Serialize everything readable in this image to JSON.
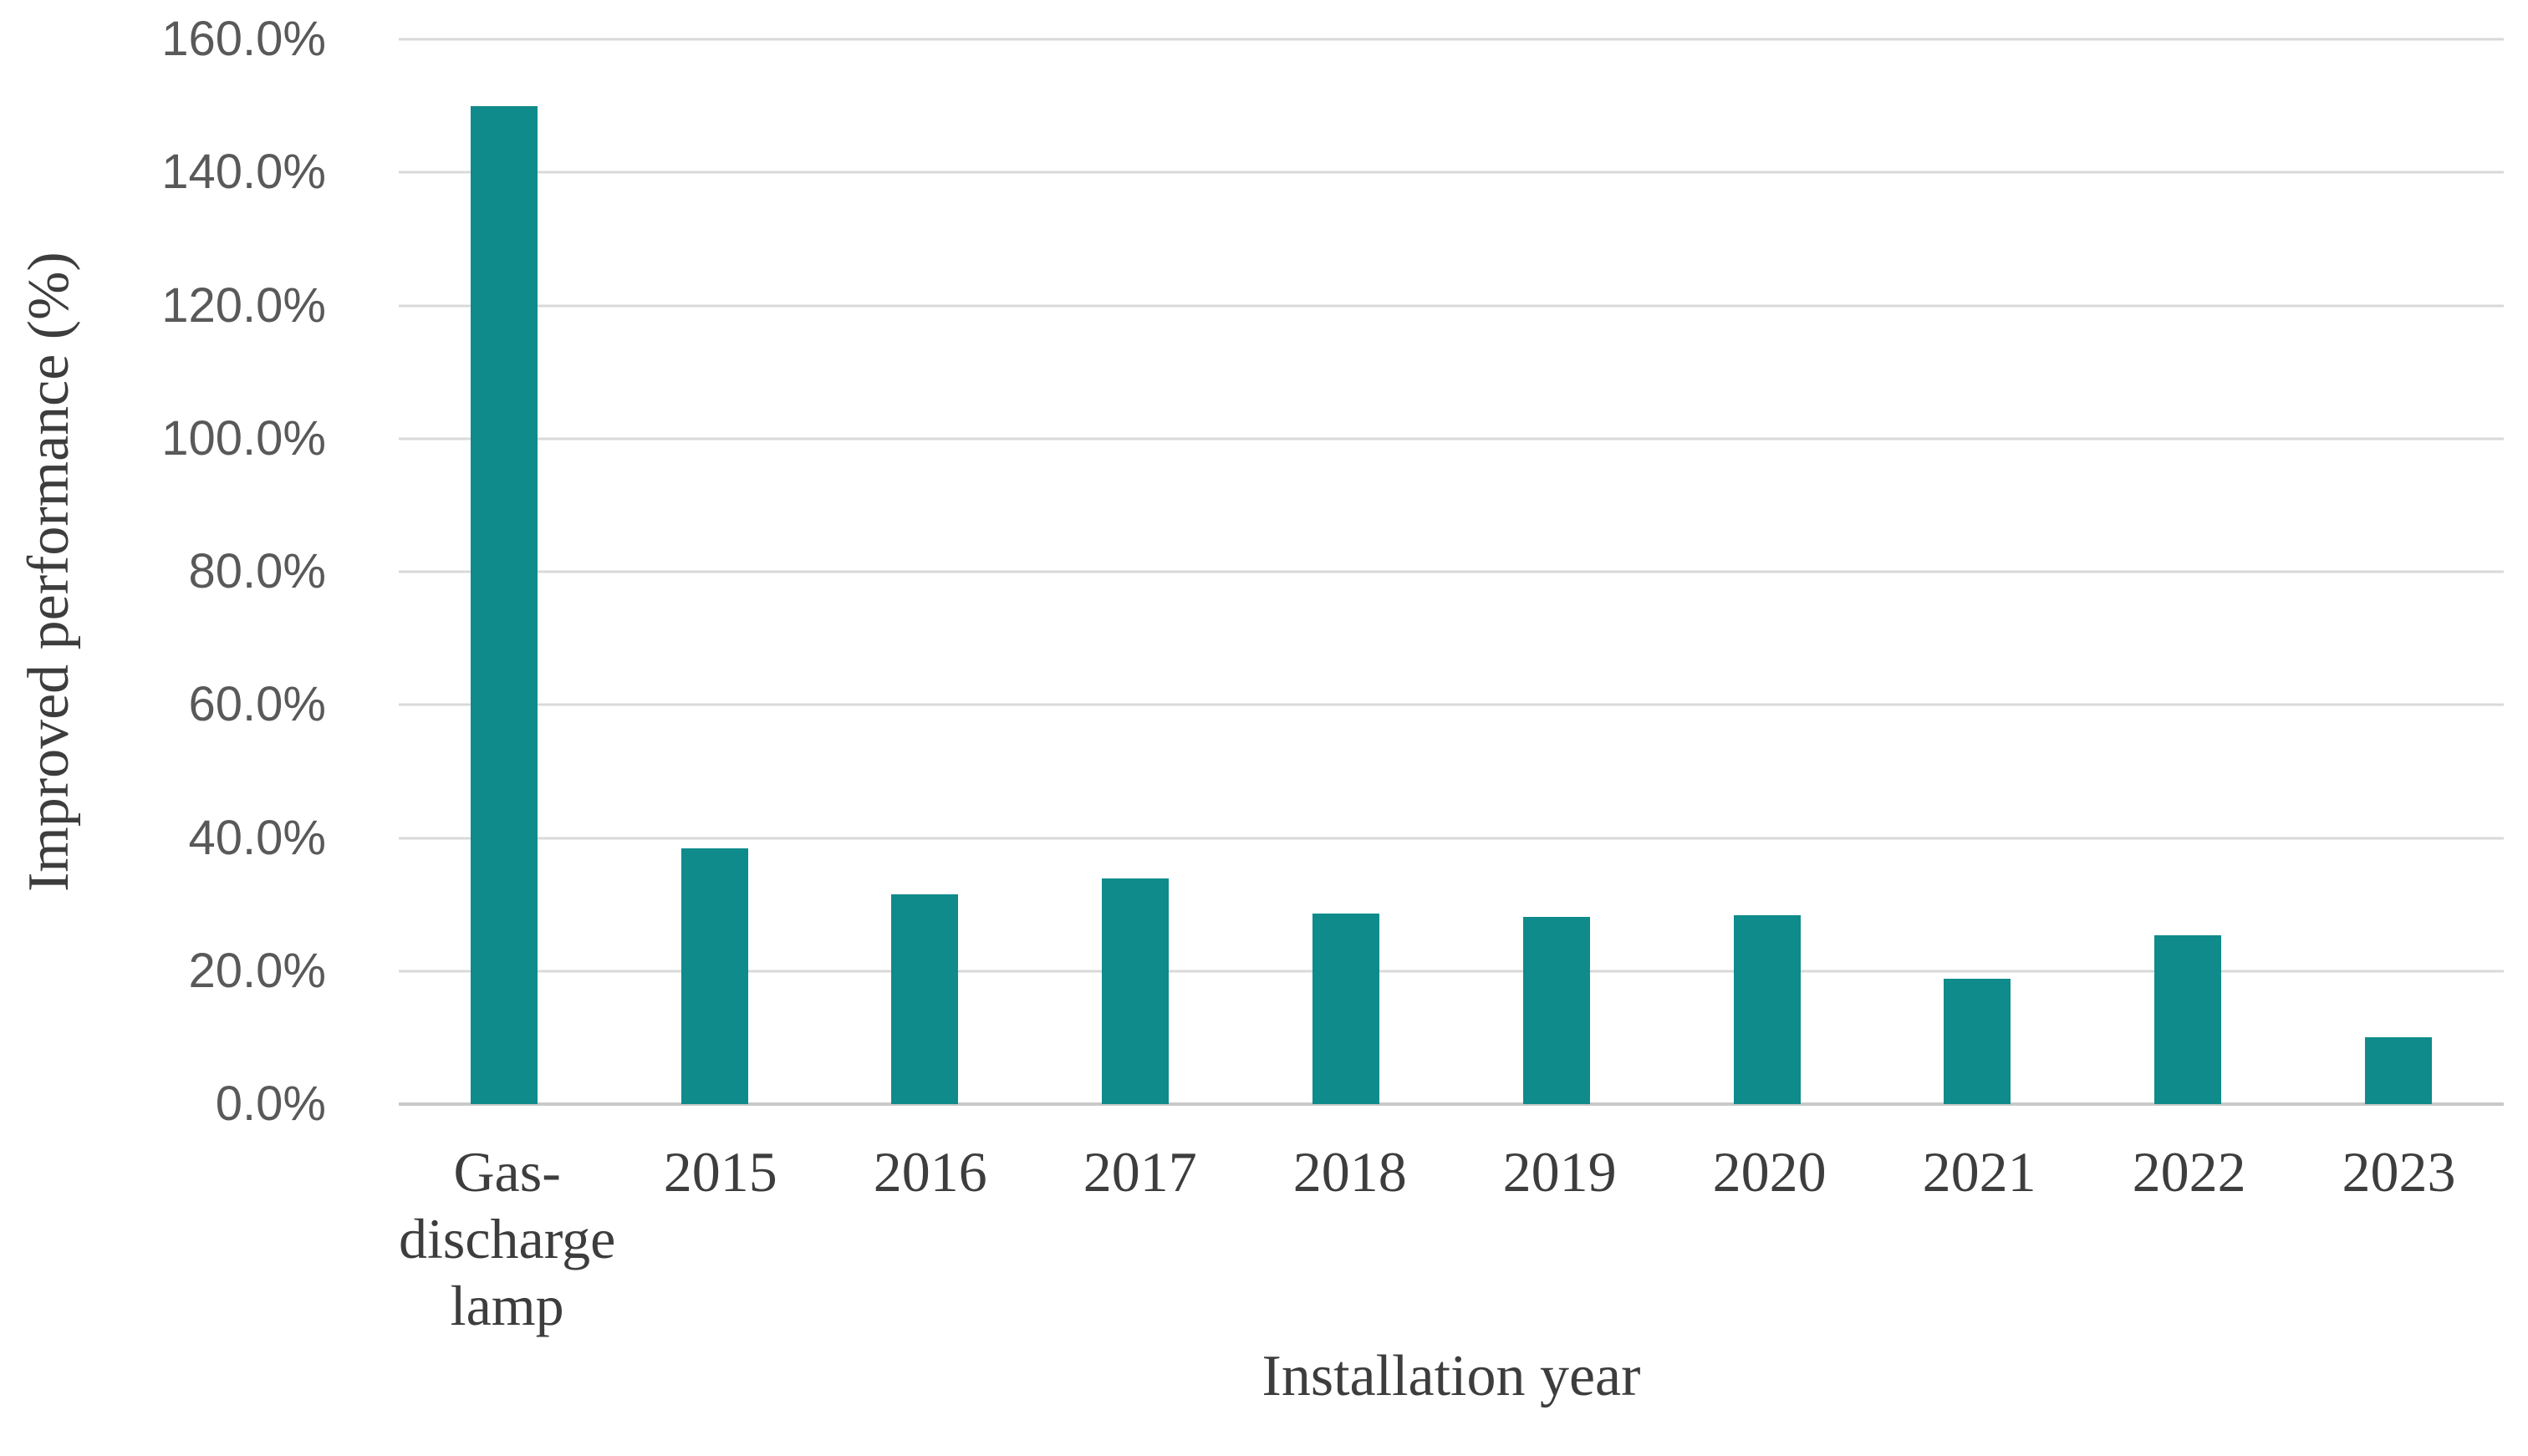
{
  "chart_data": {
    "type": "bar",
    "title": "",
    "xlabel": "Installation year",
    "ylabel": "Improved performance (%)",
    "categories": [
      "Gas-discharge lamp",
      "2015",
      "2016",
      "2017",
      "2018",
      "2019",
      "2020",
      "2021",
      "2022",
      "2023"
    ],
    "values": [
      150.0,
      38.4,
      31.5,
      33.9,
      28.6,
      28.1,
      28.4,
      18.9,
      25.4,
      10.1
    ],
    "value_unit": "%",
    "ylim": [
      0,
      160
    ],
    "ytick_step": 20,
    "ytick_labels": [
      "0.0%",
      "20.0%",
      "40.0%",
      "60.0%",
      "80.0%",
      "100.0%",
      "120.0%",
      "140.0%",
      "160.0%"
    ],
    "grid": "horizontal-gridlines-on",
    "legend": "none",
    "colors": {
      "bar": "#0f8b8b",
      "gridline": "#d9d9d9",
      "baseline": "#c9c9c9",
      "tick_label": "#595959",
      "axis_title": "#3d3d3d",
      "background": "#ffffff"
    }
  }
}
